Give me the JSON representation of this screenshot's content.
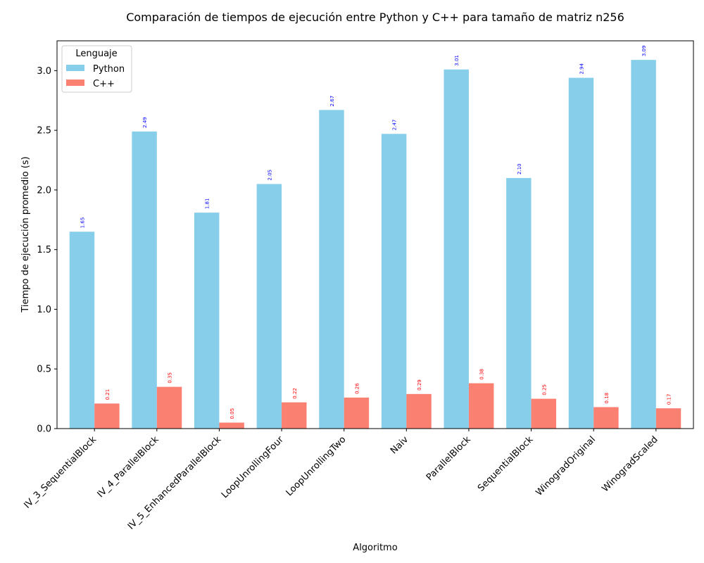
{
  "chart_data": {
    "type": "bar",
    "title": "Comparación de tiempos de ejecución entre Python y C++ para tamaño de matriz n256",
    "xlabel": "Algoritmo",
    "ylabel": "Tiempo de ejecución promedio (s)",
    "ylim": [
      0,
      3.25
    ],
    "yticks": [
      0.0,
      0.5,
      1.0,
      1.5,
      2.0,
      2.5,
      3.0
    ],
    "ytick_labels": [
      "0.0",
      "0.5",
      "1.0",
      "1.5",
      "2.0",
      "2.5",
      "3.0"
    ],
    "grid": false,
    "legend": {
      "title": "Lenguaje",
      "placement": "top-left"
    },
    "categories": [
      "IV_3_SequentialBlock",
      "IV_4_ParallelBlock",
      "IV_5_EnhancedParallelBlock",
      "LoopUnrollingFour",
      "LoopUnrollingTwo",
      "Naiv",
      "ParallelBlock",
      "SequentialBlock",
      "WinogradOriginal",
      "WinogradScaled"
    ],
    "series": [
      {
        "name": "Python",
        "color": "#87ceeb",
        "label_color": "#0000ff",
        "values": [
          1.65,
          2.49,
          1.81,
          2.05,
          2.67,
          2.47,
          3.01,
          2.1,
          2.94,
          3.09
        ],
        "labels": [
          "1.65",
          "2.49",
          "1.81",
          "2.05",
          "2.67",
          "2.47",
          "3.01",
          "2.10",
          "2.94",
          "3.09"
        ]
      },
      {
        "name": "C++",
        "color": "#fa8072",
        "label_color": "#ff0000",
        "values": [
          0.21,
          0.35,
          0.05,
          0.22,
          0.26,
          0.29,
          0.38,
          0.25,
          0.18,
          0.17
        ],
        "labels": [
          "0.21",
          "0.35",
          "0.05",
          "0.22",
          "0.26",
          "0.29",
          "0.38",
          "0.25",
          "0.18",
          "0.17"
        ]
      }
    ]
  }
}
